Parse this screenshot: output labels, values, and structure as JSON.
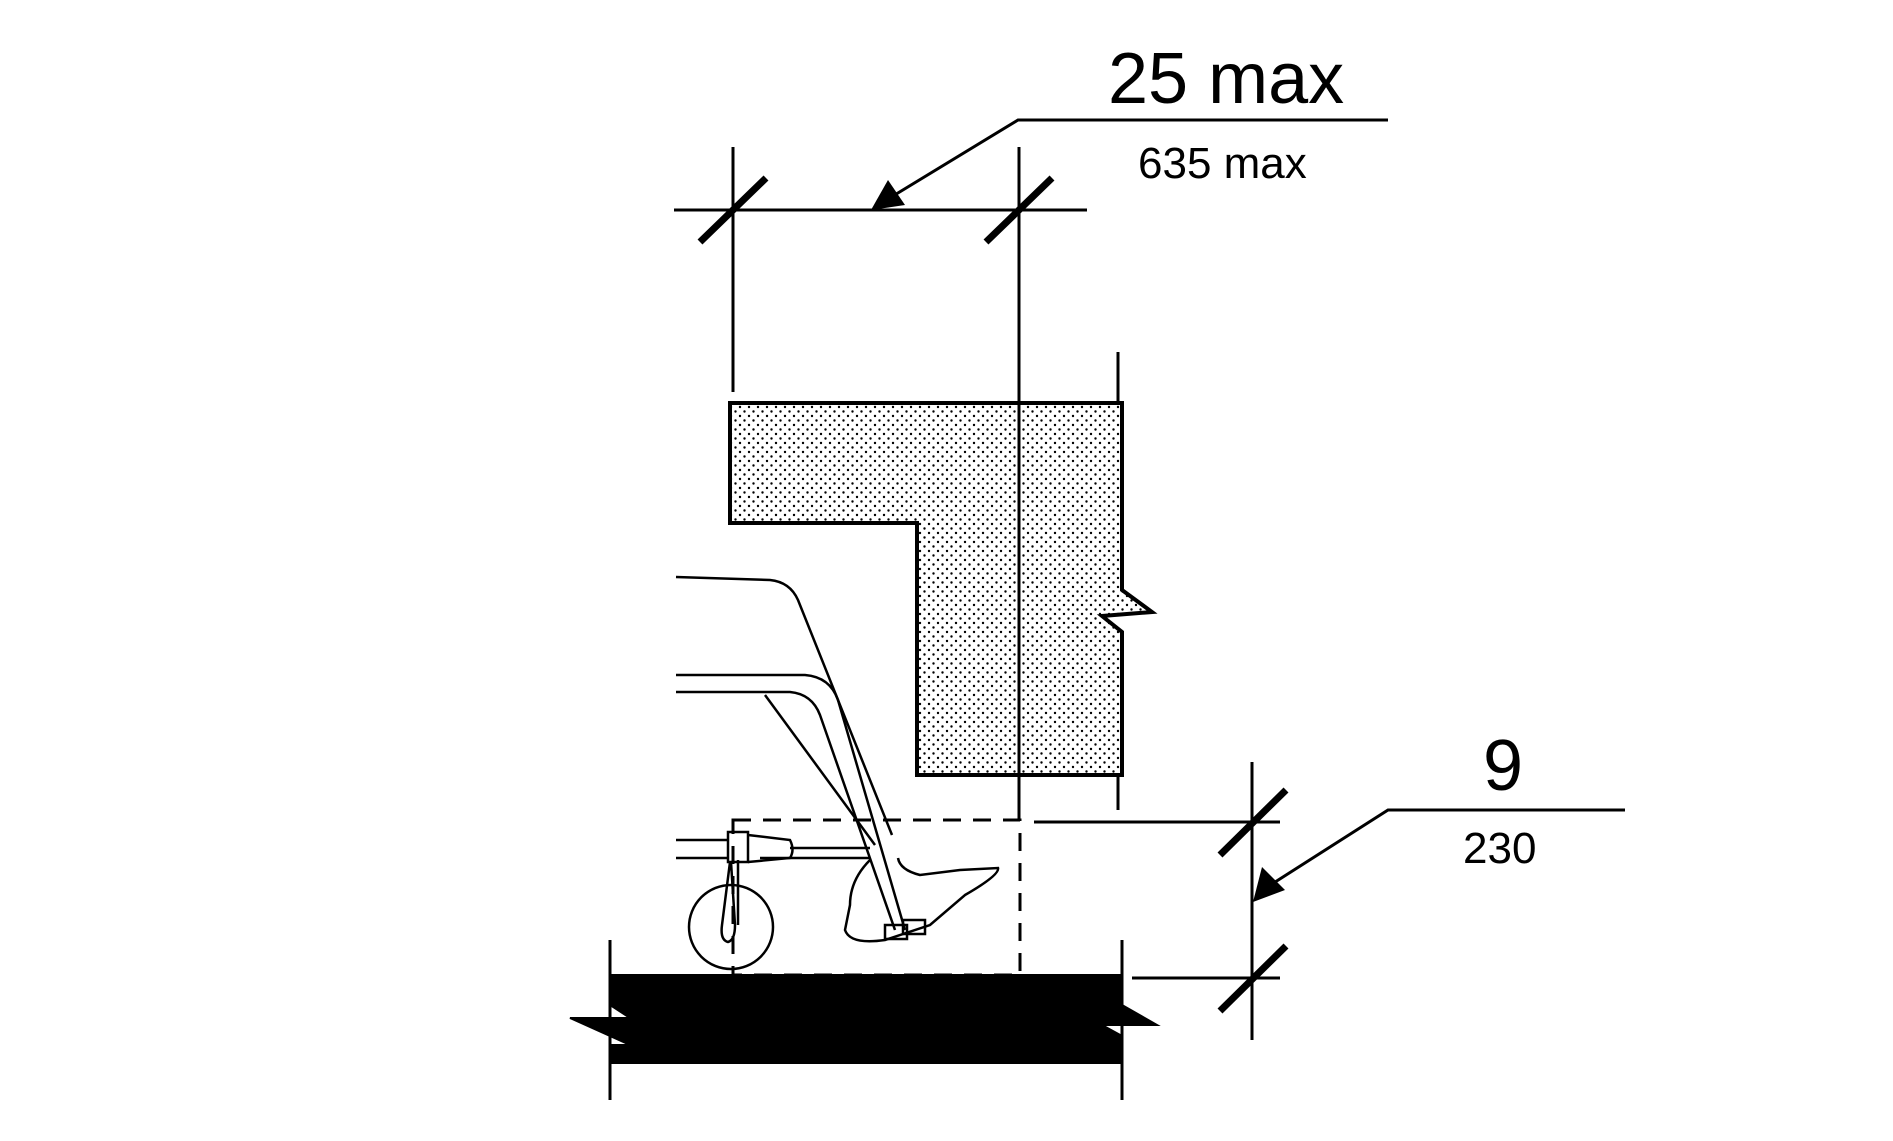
{
  "dimensions": {
    "counter_depth": {
      "imperial": "25 max",
      "metric": "635 max"
    },
    "toe_clearance_height": {
      "imperial": "9",
      "metric": "230"
    }
  },
  "colors": {
    "line": "#000000",
    "fill_stipple": "#000000",
    "background": "#ffffff",
    "floor": "#000000"
  }
}
